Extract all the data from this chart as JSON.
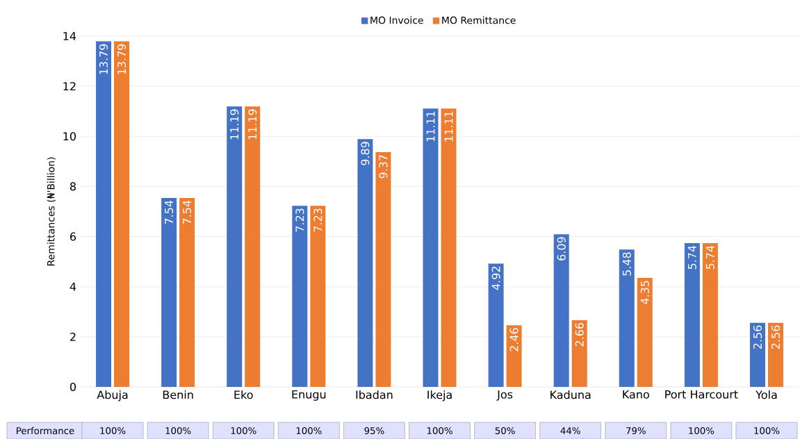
{
  "chart_data": {
    "type": "bar",
    "ylabel": "Remittances (₦'Billion)",
    "categories": [
      "Abuja",
      "Benin",
      "Eko",
      "Enugu",
      "Ibadan",
      "Ikeja",
      "Jos",
      "Kaduna",
      "Kano",
      "Port Harcourt",
      "Yola"
    ],
    "series": [
      {
        "name": "MO Invoice",
        "color": "#4472c4",
        "values": [
          13.79,
          7.54,
          11.19,
          7.23,
          9.89,
          11.11,
          4.92,
          6.09,
          5.48,
          5.74,
          2.56
        ]
      },
      {
        "name": "MO Remittance",
        "color": "#ed7d31",
        "values": [
          13.79,
          7.54,
          11.19,
          7.23,
          9.37,
          11.11,
          2.46,
          2.66,
          4.35,
          5.74,
          2.56
        ]
      }
    ],
    "ylim": [
      0,
      14
    ],
    "yticks": [
      0,
      2,
      4,
      6,
      8,
      10,
      12,
      14
    ],
    "grid": "y",
    "legend": "top",
    "data_labels": true,
    "annotations": [
      "Performance",
      "100%",
      "100%",
      "100%",
      "100%",
      "95%",
      "100%",
      "50%",
      "44%",
      "79%",
      "100%",
      "100%"
    ]
  }
}
